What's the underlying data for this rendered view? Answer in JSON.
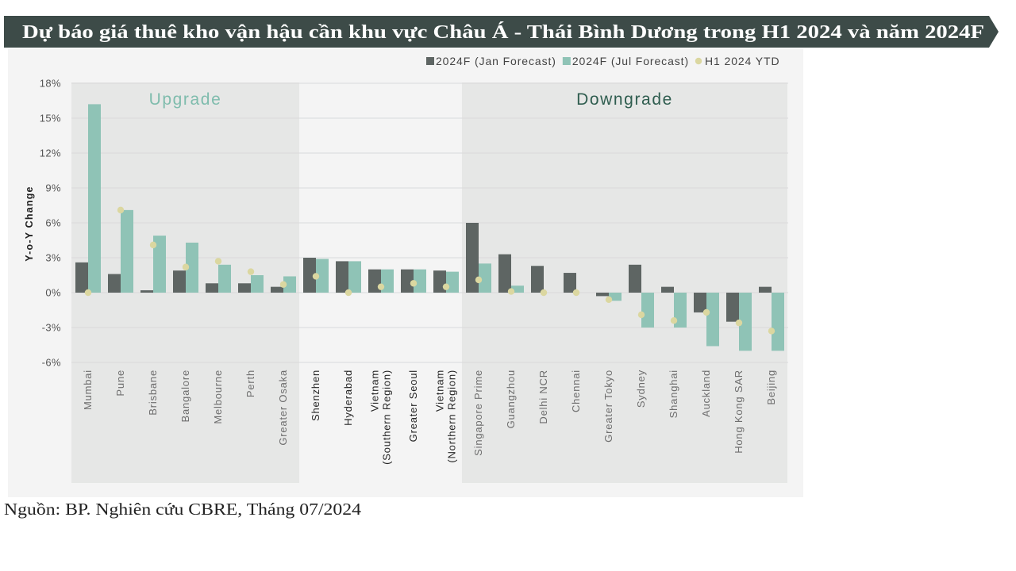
{
  "title": "Dự báo giá thuê kho vận hậu cần khu vực Châu Á - Thái Bình Dương trong H1 2024 và năm 2024F",
  "source": "Nguồn: BP. Nghiên cứu CBRE, Tháng 07/2024",
  "colors": {
    "banner": "#3d4b48",
    "chart_background": "#f4f4f4",
    "shaded_region": "#e6e7e6",
    "gridline": "#d9dadb",
    "category_text_shaded": "#6e6e6e",
    "category_text_plain": "#262626"
  },
  "chart_data": {
    "type": "bar",
    "ylabel": "Y-o-Y Change",
    "ylim": [
      -6,
      18
    ],
    "yticks": [
      18,
      15,
      12,
      9,
      6,
      3,
      0,
      -3,
      -6
    ],
    "ytick_labels": [
      "18%",
      "15%",
      "12%",
      "9%",
      "6%",
      "3%",
      "0%",
      "-3%",
      "-6%"
    ],
    "grid": true,
    "legend": "top-right",
    "categories": [
      "Mumbai",
      "Pune",
      "Brisbane",
      "Bangalore",
      "Melbourne",
      "Perth",
      "Greater Osaka",
      "Shenzhen",
      "Hyderabad",
      "Vietnam\n(Southern Region)",
      "Greater Seoul",
      "Vietnam\n(Northern Region)",
      "Singapore Prime",
      "Guangzhou",
      "Delhi NCR",
      "Chennai",
      "Greater Tokyo",
      "Sydney",
      "Shanghai",
      "Auckland",
      "Hong Kong SAR",
      "Beijing"
    ],
    "groups": [
      {
        "label": "Upgrade",
        "span": [
          0,
          6
        ],
        "shaded": true,
        "color": "#7fbcad"
      },
      {
        "span": [
          7,
          11
        ],
        "shaded": false
      },
      {
        "label": "Downgrade",
        "span": [
          12,
          21
        ],
        "shaded": true,
        "color": "#2f5d4f"
      }
    ],
    "series": [
      {
        "name": "2024F (Jan Forecast)",
        "type": "bar",
        "color": "#5e6563",
        "values": [
          2.6,
          1.6,
          0.2,
          1.9,
          0.8,
          0.8,
          0.5,
          3.0,
          2.7,
          2.0,
          2.0,
          1.9,
          6.0,
          3.3,
          2.3,
          1.7,
          -0.3,
          2.4,
          0.5,
          -1.7,
          -2.5,
          0.5
        ]
      },
      {
        "name": "2024F (Jul Forecast)",
        "type": "bar",
        "color": "#8fc3b6",
        "values": [
          16.2,
          7.1,
          4.9,
          4.3,
          2.4,
          1.5,
          1.4,
          2.9,
          2.7,
          2.0,
          2.0,
          1.8,
          2.5,
          0.6,
          0.0,
          0.0,
          -0.7,
          -3.0,
          -3.0,
          -4.6,
          -5.0,
          -5.0
        ]
      },
      {
        "name": "H1 2024 YTD",
        "type": "dot",
        "color": "#dbd7a0",
        "values": [
          0.0,
          7.1,
          4.1,
          2.2,
          2.7,
          1.8,
          0.7,
          1.4,
          0.0,
          0.5,
          0.8,
          0.5,
          1.1,
          0.1,
          0.0,
          0.0,
          -0.6,
          -1.9,
          -2.4,
          -1.7,
          -2.6,
          -3.3
        ]
      }
    ]
  }
}
